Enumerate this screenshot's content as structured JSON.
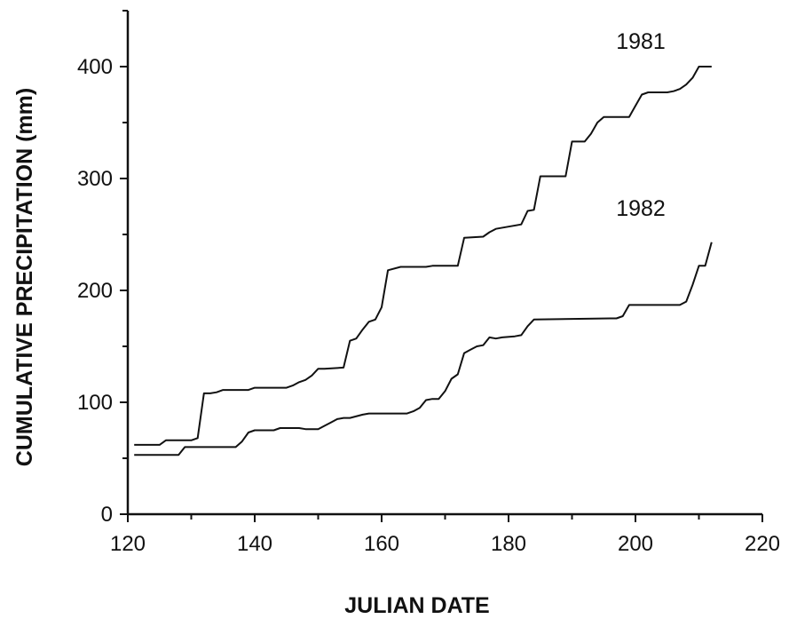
{
  "chart_data": {
    "type": "line",
    "title": "",
    "xlabel": "JULIAN DATE",
    "ylabel": "CUMULATIVE PRECIPITATION (mm)",
    "xlim": [
      120,
      220
    ],
    "ylim": [
      0,
      450
    ],
    "x_ticks": [
      "120",
      "140",
      "160",
      "180",
      "200",
      "220"
    ],
    "y_ticks": [
      "0",
      "100",
      "200",
      "300",
      "400"
    ],
    "grid": false,
    "series": [
      {
        "name": "1981",
        "x": [
          121,
          125,
          126,
          130,
          131,
          132,
          133,
          134,
          135,
          139,
          140,
          145,
          146,
          147,
          148,
          149,
          150,
          151,
          154,
          155,
          156,
          157,
          158,
          159,
          160,
          161,
          163,
          167,
          168,
          172,
          173,
          176,
          177,
          178,
          180,
          182,
          183,
          184,
          185,
          188,
          189,
          190,
          191,
          192,
          193,
          194,
          195,
          198,
          199,
          200,
          201,
          202,
          205,
          206,
          207,
          208,
          209,
          210,
          211,
          212
        ],
        "y": [
          62,
          62,
          66,
          66,
          68,
          108,
          108,
          109,
          111,
          111,
          113,
          113,
          115,
          118,
          120,
          124,
          130,
          130,
          131,
          155,
          157,
          165,
          172,
          174,
          185,
          218,
          221,
          221,
          222,
          222,
          247,
          248,
          252,
          255,
          257,
          259,
          271,
          272,
          302,
          302,
          302,
          333,
          333,
          333,
          340,
          350,
          355,
          355,
          355,
          365,
          375,
          377,
          377,
          378,
          380,
          384,
          390,
          400,
          400,
          400
        ]
      },
      {
        "name": "1982",
        "x": [
          121,
          128,
          129,
          137,
          138,
          139,
          140,
          143,
          144,
          147,
          148,
          150,
          151,
          152,
          153,
          154,
          155,
          157,
          158,
          164,
          165,
          166,
          167,
          168,
          169,
          170,
          171,
          172,
          173,
          174,
          175,
          176,
          177,
          178,
          179,
          181,
          182,
          183,
          184,
          196,
          197,
          198,
          199,
          207,
          208,
          209,
          210,
          211,
          212
        ],
        "y": [
          53,
          53,
          60,
          60,
          65,
          73,
          75,
          75,
          77,
          77,
          76,
          76,
          79,
          82,
          85,
          86,
          86,
          89,
          90,
          90,
          92,
          95,
          102,
          103,
          103,
          110,
          121,
          125,
          144,
          147,
          150,
          151,
          158,
          157,
          158,
          159,
          160,
          168,
          174,
          175,
          175,
          177,
          187,
          187,
          190,
          205,
          222,
          222,
          243
        ]
      }
    ]
  }
}
